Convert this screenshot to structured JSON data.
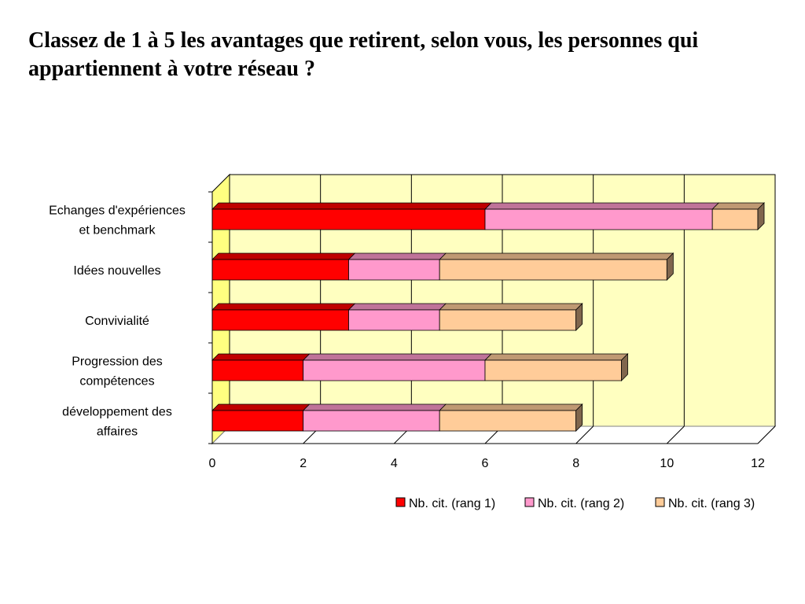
{
  "slide": {
    "title": "Classez de 1 à 5 les avantages que retirent, selon vous, les personnes qui appartiennent à votre réseau ?"
  },
  "chart_data": {
    "type": "bar",
    "orientation": "horizontal",
    "stacked": true,
    "style": "3d",
    "categories": [
      [
        "Echanges d'expériences",
        "et benchmark"
      ],
      [
        "Idées nouvelles"
      ],
      [
        "Convivialité"
      ],
      [
        "Progression des",
        "compétences"
      ],
      [
        "développement des",
        "affaires"
      ]
    ],
    "series": [
      {
        "name": "Nb. cit. (rang 1)",
        "color": "#ff0000",
        "values": [
          6,
          3,
          3,
          2,
          2
        ]
      },
      {
        "name": "Nb. cit. (rang 2)",
        "color": "#ff99cc",
        "values": [
          5,
          2,
          2,
          4,
          3
        ]
      },
      {
        "name": "Nb. cit. (rang 3)",
        "color": "#ffcc99",
        "values": [
          1,
          5,
          3,
          3,
          3
        ]
      }
    ],
    "xlim": [
      0,
      12
    ],
    "xticks": [
      0,
      2,
      4,
      6,
      8,
      10,
      12
    ],
    "grid": true,
    "background_color": "#ffffc0",
    "legend_position": "bottom-right"
  }
}
